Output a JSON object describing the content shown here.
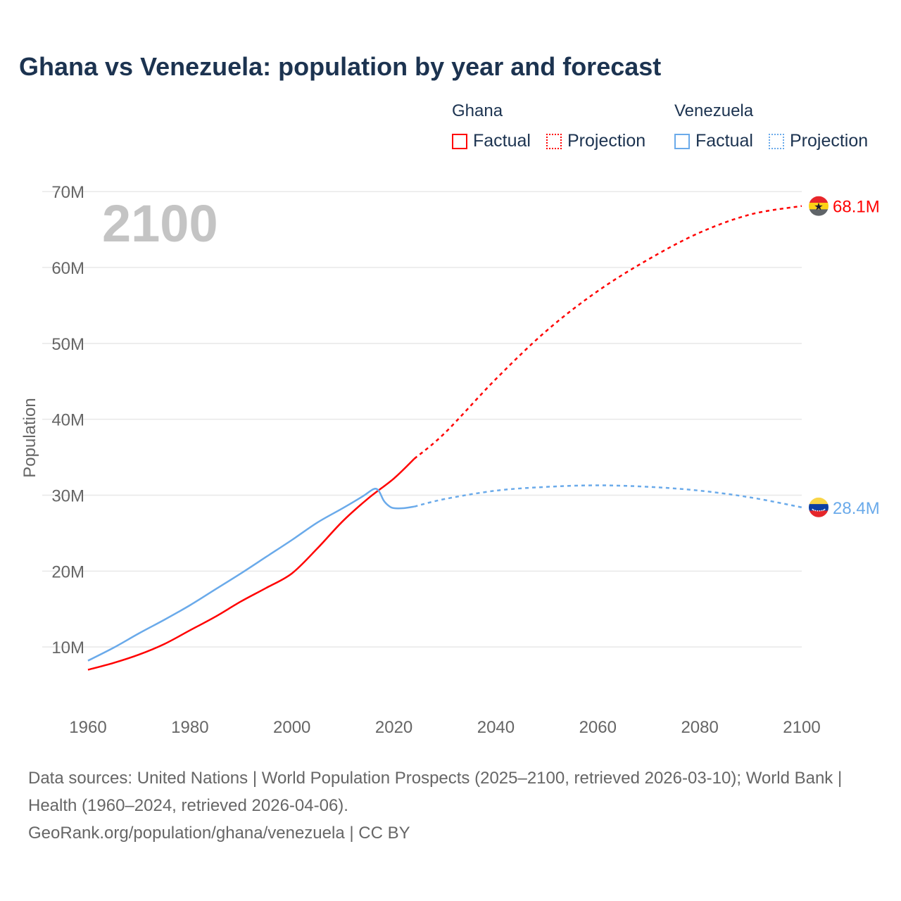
{
  "chart_data": {
    "type": "line",
    "title": "Ghana vs Venezuela: population by year and forecast",
    "xlabel": "",
    "ylabel": "Population",
    "xlim": [
      1960,
      2100
    ],
    "ylim": [
      0,
      70000000
    ],
    "x_ticks": [
      "1960",
      "1980",
      "2000",
      "2020",
      "2040",
      "2060",
      "2080",
      "2100"
    ],
    "y_ticks": [
      "10M",
      "20M",
      "30M",
      "40M",
      "50M",
      "60M",
      "70M"
    ],
    "grid": true,
    "year_label": "2100",
    "legend": {
      "placement": "top-right",
      "groups": [
        {
          "name": "Ghana",
          "factual": "Factual",
          "projection": "Projection",
          "color": "#ff0000"
        },
        {
          "name": "Venezuela",
          "factual": "Factual",
          "projection": "Projection",
          "color": "#6aaaea"
        }
      ]
    },
    "series": [
      {
        "name": "Ghana",
        "color": "#ff0000",
        "end_label": "68.1M",
        "factual": {
          "x": [
            1960,
            1965,
            1970,
            1975,
            1980,
            1985,
            1990,
            1995,
            2000,
            2005,
            2010,
            2015,
            2020,
            2024
          ],
          "y": [
            7.0,
            7.9,
            9.0,
            10.4,
            12.2,
            14.0,
            16.0,
            17.8,
            19.7,
            23.0,
            26.6,
            29.6,
            32.2,
            34.8
          ]
        },
        "projection": {
          "x": [
            2024,
            2030,
            2040,
            2050,
            2060,
            2070,
            2080,
            2090,
            2100
          ],
          "y": [
            34.8,
            38.2,
            45.3,
            51.7,
            56.9,
            61.1,
            64.6,
            67.0,
            68.1
          ]
        }
      },
      {
        "name": "Venezuela",
        "color": "#6aaaea",
        "end_label": "28.4M",
        "factual": {
          "x": [
            1960,
            1965,
            1970,
            1975,
            1980,
            1985,
            1990,
            1995,
            2000,
            2005,
            2010,
            2014,
            2016,
            2017,
            2018,
            2019,
            2020,
            2022,
            2024
          ],
          "y": [
            8.2,
            9.9,
            11.8,
            13.6,
            15.5,
            17.6,
            19.7,
            21.9,
            24.1,
            26.4,
            28.3,
            29.9,
            30.8,
            30.6,
            29.3,
            28.6,
            28.3,
            28.3,
            28.5
          ]
        },
        "projection": {
          "x": [
            2024,
            2030,
            2040,
            2050,
            2060,
            2070,
            2080,
            2090,
            2100
          ],
          "y": [
            28.5,
            29.5,
            30.6,
            31.1,
            31.3,
            31.1,
            30.6,
            29.7,
            28.4
          ]
        }
      }
    ]
  },
  "sources": {
    "line1": "Data sources: United Nations | World Population Prospects (2025–2100, retrieved 2026-03-10); World Bank | Health (1960–2024, retrieved 2026-04-06).",
    "line2": "GeoRank.org/population/ghana/venezuela | CC BY"
  }
}
